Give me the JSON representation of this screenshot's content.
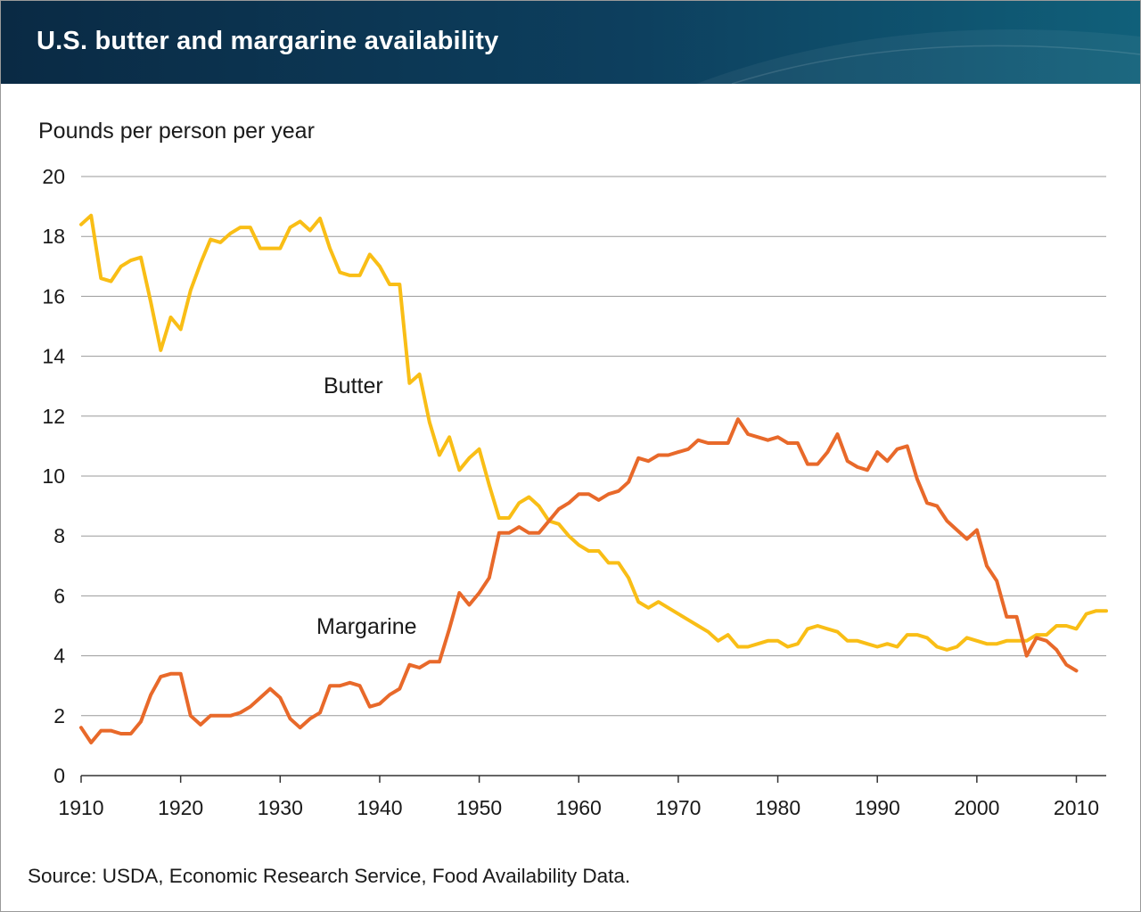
{
  "header": {
    "title": "U.S. butter and margarine availability"
  },
  "colors": {
    "butter": "#f9be16",
    "margarine": "#e8692a",
    "grid": "#9a9a9a"
  },
  "footer": {
    "source": "Source: USDA, Economic Research Service, Food Availability Data."
  },
  "chart_data": {
    "type": "line",
    "title": "U.S. butter and margarine availability",
    "ylabel": "Pounds per person per year",
    "xlabel": "",
    "xlim": [
      1910,
      2013
    ],
    "ylim": [
      0,
      20
    ],
    "y_ticks": [
      0,
      2,
      4,
      6,
      8,
      10,
      12,
      14,
      16,
      18,
      20
    ],
    "x_ticks": [
      1910,
      1920,
      1930,
      1940,
      1950,
      1960,
      1970,
      1980,
      1990,
      2000,
      2010
    ],
    "grid": true,
    "annotations": [
      {
        "text": "Butter",
        "series": "Butter"
      },
      {
        "text": "Margarine",
        "series": "Margarine"
      }
    ],
    "series": [
      {
        "name": "Butter",
        "color": "#f9be16",
        "x": [
          1910,
          1911,
          1912,
          1913,
          1914,
          1915,
          1916,
          1917,
          1918,
          1919,
          1920,
          1921,
          1922,
          1923,
          1924,
          1925,
          1926,
          1927,
          1928,
          1929,
          1930,
          1931,
          1932,
          1933,
          1934,
          1935,
          1936,
          1937,
          1938,
          1939,
          1940,
          1941,
          1942,
          1943,
          1944,
          1945,
          1946,
          1947,
          1948,
          1949,
          1950,
          1951,
          1952,
          1953,
          1954,
          1955,
          1956,
          1957,
          1958,
          1959,
          1960,
          1961,
          1962,
          1963,
          1964,
          1965,
          1966,
          1967,
          1968,
          1969,
          1970,
          1971,
          1972,
          1973,
          1974,
          1975,
          1976,
          1977,
          1978,
          1979,
          1980,
          1981,
          1982,
          1983,
          1984,
          1985,
          1986,
          1987,
          1988,
          1989,
          1990,
          1991,
          1992,
          1993,
          1994,
          1995,
          1996,
          1997,
          1998,
          1999,
          2000,
          2001,
          2002,
          2003,
          2004,
          2005,
          2006,
          2007,
          2008,
          2009,
          2010,
          2011,
          2012,
          2013
        ],
        "values": [
          18.4,
          18.7,
          16.6,
          16.5,
          17.0,
          17.2,
          17.3,
          15.8,
          14.2,
          15.3,
          14.9,
          16.2,
          17.1,
          17.9,
          17.8,
          18.1,
          18.3,
          18.3,
          17.6,
          17.6,
          17.6,
          18.3,
          18.5,
          18.2,
          18.6,
          17.6,
          16.8,
          16.7,
          16.7,
          17.4,
          17.0,
          16.4,
          16.4,
          13.1,
          13.4,
          11.8,
          10.7,
          11.3,
          10.2,
          10.6,
          10.9,
          9.7,
          8.6,
          8.6,
          9.1,
          9.3,
          9.0,
          8.5,
          8.4,
          8.0,
          7.7,
          7.5,
          7.5,
          7.1,
          7.1,
          6.6,
          5.8,
          5.6,
          5.8,
          5.6,
          5.4,
          5.2,
          5.0,
          4.8,
          4.5,
          4.7,
          4.3,
          4.3,
          4.4,
          4.5,
          4.5,
          4.3,
          4.4,
          4.9,
          5.0,
          4.9,
          4.8,
          4.5,
          4.5,
          4.4,
          4.3,
          4.4,
          4.3,
          4.7,
          4.7,
          4.6,
          4.3,
          4.2,
          4.3,
          4.6,
          4.5,
          4.4,
          4.4,
          4.5,
          4.5,
          4.5,
          4.7,
          4.7,
          5.0,
          5.0,
          4.9,
          5.4,
          5.5,
          5.5
        ]
      },
      {
        "name": "Margarine",
        "color": "#e8692a",
        "x": [
          1910,
          1911,
          1912,
          1913,
          1914,
          1915,
          1916,
          1917,
          1918,
          1919,
          1920,
          1921,
          1922,
          1923,
          1924,
          1925,
          1926,
          1927,
          1928,
          1929,
          1930,
          1931,
          1932,
          1933,
          1934,
          1935,
          1936,
          1937,
          1938,
          1939,
          1940,
          1941,
          1942,
          1943,
          1944,
          1945,
          1946,
          1947,
          1948,
          1949,
          1950,
          1951,
          1952,
          1953,
          1954,
          1955,
          1956,
          1957,
          1958,
          1959,
          1960,
          1961,
          1962,
          1963,
          1964,
          1965,
          1966,
          1967,
          1968,
          1969,
          1970,
          1971,
          1972,
          1973,
          1974,
          1975,
          1976,
          1977,
          1978,
          1979,
          1980,
          1981,
          1982,
          1983,
          1984,
          1985,
          1986,
          1987,
          1988,
          1989,
          1990,
          1991,
          1992,
          1993,
          1994,
          1995,
          1996,
          1997,
          1998,
          1999,
          2000,
          2001,
          2002,
          2003,
          2004,
          2005,
          2006,
          2007,
          2008,
          2009,
          2010
        ],
        "values": [
          1.6,
          1.1,
          1.5,
          1.5,
          1.4,
          1.4,
          1.8,
          2.7,
          3.3,
          3.4,
          3.4,
          2.0,
          1.7,
          2.0,
          2.0,
          2.0,
          2.1,
          2.3,
          2.6,
          2.9,
          2.6,
          1.9,
          1.6,
          1.9,
          2.1,
          3.0,
          3.0,
          3.1,
          3.0,
          2.3,
          2.4,
          2.7,
          2.9,
          3.7,
          3.6,
          3.8,
          3.8,
          4.9,
          6.1,
          5.7,
          6.1,
          6.6,
          8.1,
          8.1,
          8.3,
          8.1,
          8.1,
          8.5,
          8.9,
          9.1,
          9.4,
          9.4,
          9.2,
          9.4,
          9.5,
          9.8,
          10.6,
          10.5,
          10.7,
          10.7,
          10.8,
          10.9,
          11.2,
          11.1,
          11.1,
          11.1,
          11.9,
          11.4,
          11.3,
          11.2,
          11.3,
          11.1,
          11.1,
          10.4,
          10.4,
          10.8,
          11.4,
          10.5,
          10.3,
          10.2,
          10.8,
          10.5,
          10.9,
          11.0,
          9.9,
          9.1,
          9.0,
          8.5,
          8.2,
          7.9,
          8.2,
          7.0,
          6.5,
          5.3,
          5.3,
          4.0,
          4.6,
          4.5,
          4.2,
          3.7,
          3.5
        ]
      }
    ]
  }
}
